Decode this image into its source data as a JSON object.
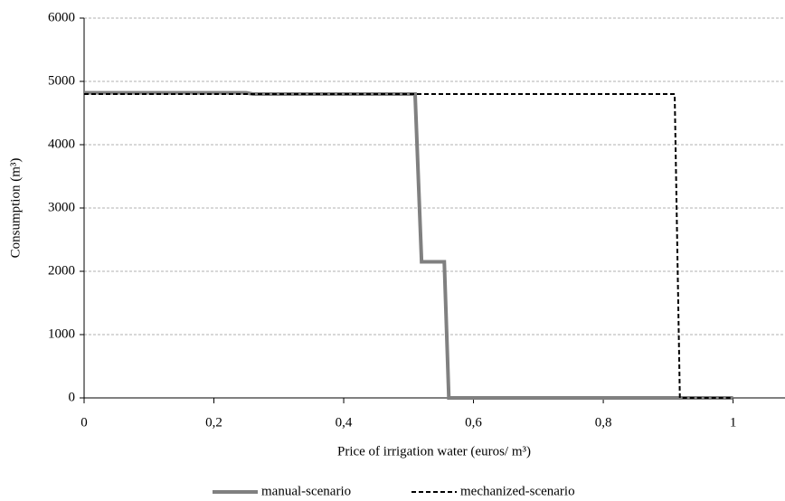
{
  "chart_data": {
    "type": "line",
    "x_label": "Price of irrigation water (euros/ m³)",
    "y_label": "Consumption (m³)",
    "xlim": [
      0,
      1.08
    ],
    "xticks": [
      0,
      {
        "value": 0.2,
        "label": "0,2"
      },
      {
        "value": 0.4,
        "label": "0,4"
      },
      {
        "value": 0.6,
        "label": "0,6"
      },
      {
        "value": 0.8,
        "label": "0,8"
      },
      1
    ],
    "ylim": [
      0,
      6000
    ],
    "yticks": [
      0,
      1000,
      2000,
      3000,
      4000,
      5000,
      6000
    ],
    "grid": true,
    "legend": "bottom",
    "series": [
      {
        "name": "manual-scenario",
        "color": "#808080",
        "dashed": false,
        "x": [
          0,
          0.25,
          0.26,
          0.51,
          0.52,
          0.555,
          0.562,
          1.0
        ],
        "values": [
          4820,
          4820,
          4800,
          4800,
          2150,
          2150,
          0,
          0
        ]
      },
      {
        "name": "mechanized-scenario",
        "color": "#000000",
        "dashed": true,
        "x": [
          0,
          0.91,
          0.918,
          1.0
        ],
        "values": [
          4800,
          4800,
          0,
          0
        ]
      }
    ]
  }
}
